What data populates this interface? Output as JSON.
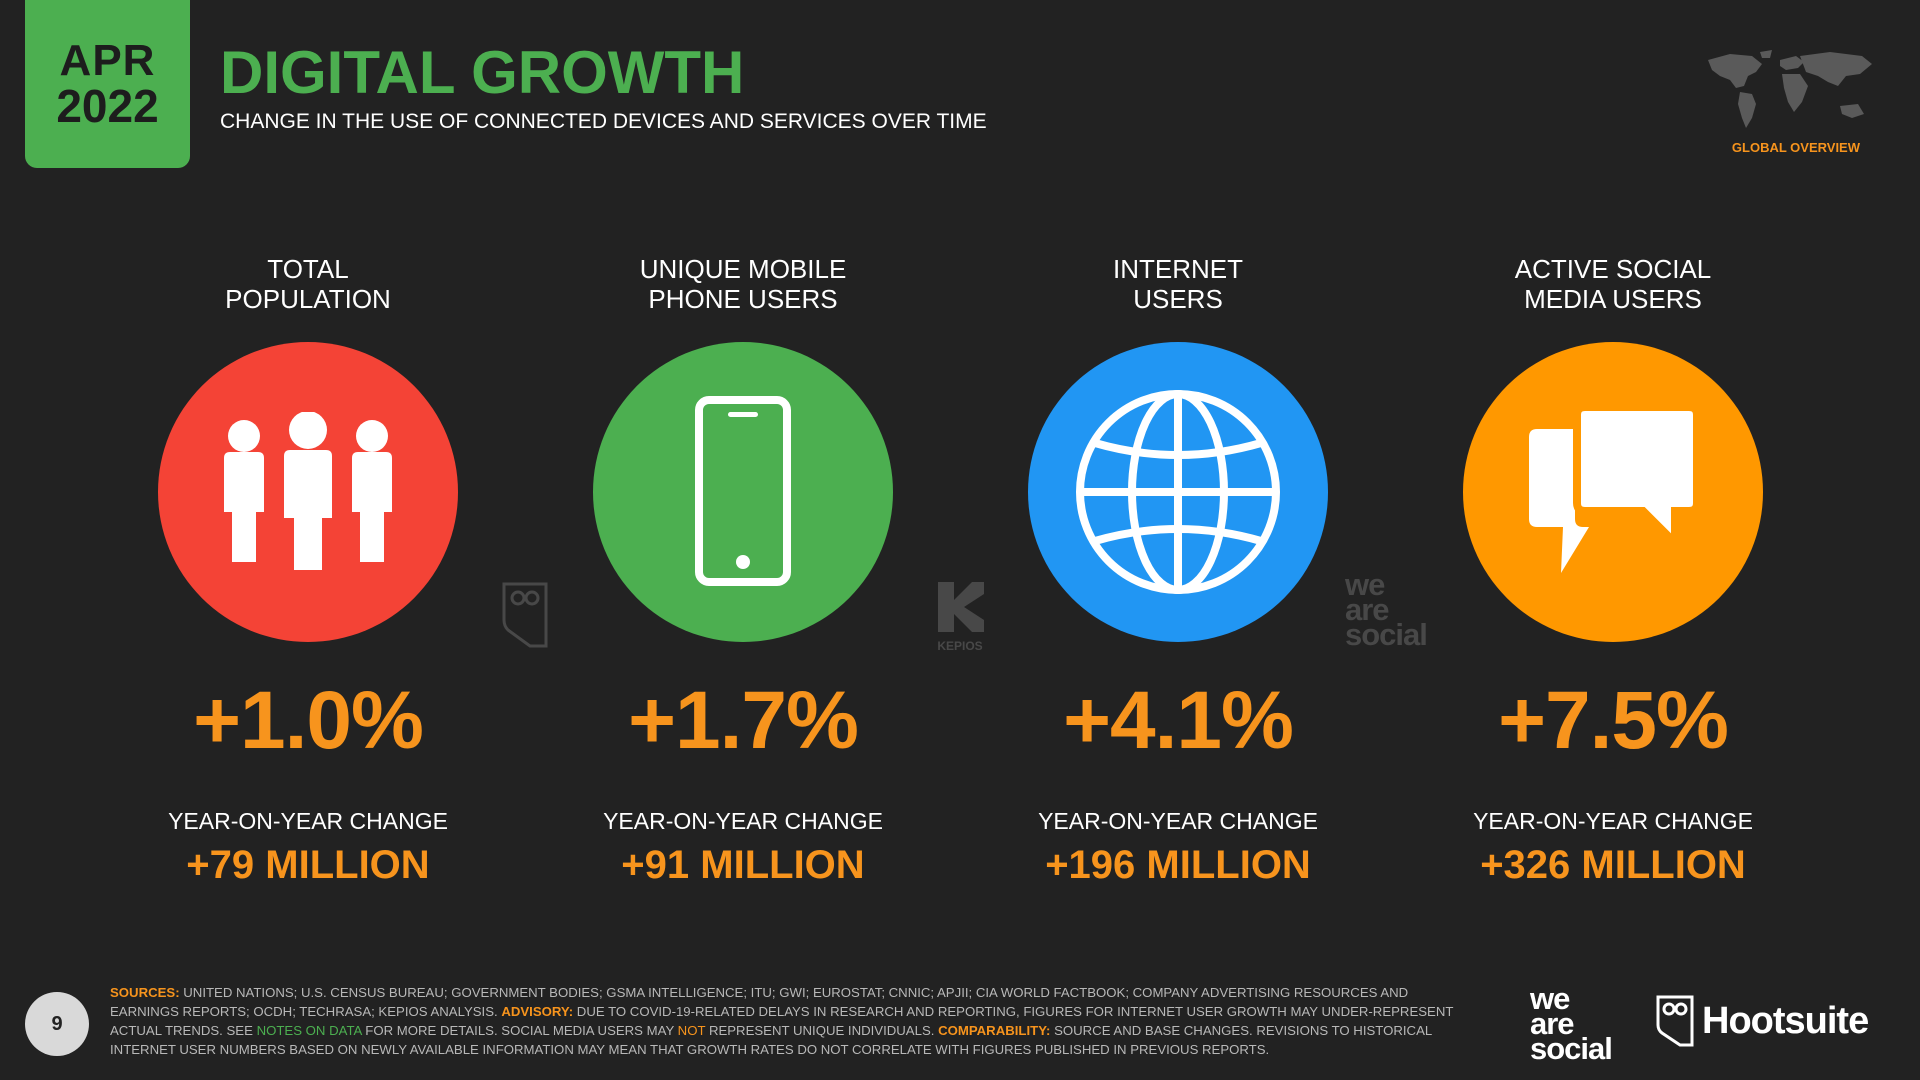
{
  "badge": {
    "month": "APR",
    "year": "2022"
  },
  "title": "DIGITAL GROWTH",
  "subtitle": "CHANGE IN THE USE OF CONNECTED DEVICES AND SERVICES OVER TIME",
  "global_overview": "GLOBAL OVERVIEW",
  "metrics": [
    {
      "label_line1": "TOTAL",
      "label_line2": "POPULATION",
      "icon": "people-icon",
      "color": "#f44336",
      "pct": "+1.0%",
      "yoy_label": "YEAR-ON-YEAR CHANGE",
      "abs": "+79 MILLION"
    },
    {
      "label_line1": "UNIQUE MOBILE",
      "label_line2": "PHONE USERS",
      "icon": "mobile-phone-icon",
      "color": "#4caf50",
      "pct": "+1.7%",
      "yoy_label": "YEAR-ON-YEAR CHANGE",
      "abs": "+91 MILLION"
    },
    {
      "label_line1": "INTERNET",
      "label_line2": "USERS",
      "icon": "globe-icon",
      "color": "#2196f3",
      "pct": "+4.1%",
      "yoy_label": "YEAR-ON-YEAR CHANGE",
      "abs": "+196 MILLION"
    },
    {
      "label_line1": "ACTIVE SOCIAL",
      "label_line2": "MEDIA USERS",
      "icon": "chat-bubbles-icon",
      "color": "#ff9800",
      "pct": "+7.5%",
      "yoy_label": "YEAR-ON-YEAR CHANGE",
      "abs": "+326 MILLION"
    }
  ],
  "watermarks": {
    "kepios": "KEPIOS",
    "was": [
      "we",
      "are",
      "social"
    ]
  },
  "page_number": "9",
  "footer": {
    "sources_key": "SOURCES:",
    "sources_text": " UNITED NATIONS; U.S. CENSUS BUREAU; GOVERNMENT BODIES; GSMA INTELLIGENCE; ITU; GWI; EUROSTAT; CNNIC; APJII; CIA WORLD FACTBOOK; COMPANY ADVERTISING RESOURCES AND EARNINGS REPORTS; OCDH; TECHRASA; KEPIOS ANALYSIS. ",
    "advisory_key": "ADVISORY:",
    "advisory_text_1": " DUE TO COVID-19-RELATED DELAYS IN RESEARCH AND REPORTING, FIGURES FOR INTERNET USER GROWTH MAY UNDER-REPRESENT ACTUAL TRENDS. SEE ",
    "notes_link": "NOTES ON DATA",
    "advisory_text_2": " FOR MORE DETAILS. SOCIAL MEDIA USERS MAY ",
    "not_word": "NOT",
    "advisory_text_3": " REPRESENT UNIQUE INDIVIDUALS. ",
    "comparability_key": "COMPARABILITY:",
    "comparability_text": " SOURCE AND BASE CHANGES. REVISIONS TO HISTORICAL INTERNET USER NUMBERS BASED ON NEWLY AVAILABLE INFORMATION MAY MEAN THAT GROWTH RATES DO NOT CORRELATE WITH FIGURES PUBLISHED IN PREVIOUS REPORTS."
  },
  "logos": {
    "was": [
      "we",
      "are",
      "social"
    ],
    "hootsuite": "Hootsuite"
  },
  "colors": {
    "accent_green": "#4caf50",
    "accent_orange": "#f7941d",
    "background": "#222222"
  }
}
